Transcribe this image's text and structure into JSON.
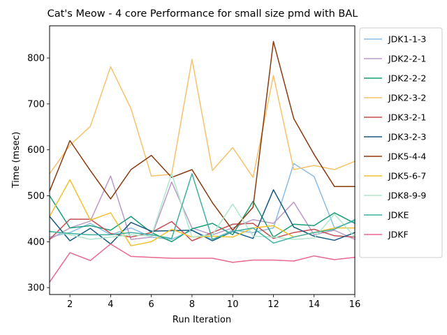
{
  "chart_data": {
    "type": "line",
    "title": "Cat's Meow - 4 core Performance for small size pmd with BAL",
    "xlabel": "Run Iteration",
    "ylabel": "Time (msec)",
    "xlim": [
      1,
      16
    ],
    "ylim": [
      285,
      870
    ],
    "xticks": [
      2,
      4,
      6,
      8,
      10,
      12,
      14,
      16
    ],
    "yticks": [
      300,
      400,
      500,
      600,
      700,
      800
    ],
    "grid": false,
    "legend_position": "right-outside",
    "x": [
      1,
      2,
      3,
      4,
      5,
      6,
      7,
      8,
      9,
      10,
      11,
      12,
      13,
      14,
      15,
      16
    ],
    "series": [
      {
        "name": "JDK1-1-3",
        "color": "#88bde6",
        "values": [
          410,
          420,
          440,
          415,
          430,
          410,
          405,
          425,
          405,
          425,
          420,
          430,
          570,
          542,
          430,
          445
        ]
      },
      {
        "name": "JDK2-2-1",
        "color": "#bc99c7",
        "values": [
          405,
          430,
          445,
          543,
          405,
          410,
          530,
          430,
          415,
          430,
          448,
          440,
          486,
          415,
          425,
          405
        ]
      },
      {
        "name": "JDK2-2-2",
        "color": "#1b9e77",
        "values": [
          500,
          430,
          435,
          425,
          455,
          420,
          400,
          428,
          440,
          415,
          488,
          410,
          438,
          435,
          463,
          440
        ]
      },
      {
        "name": "JDK2-3-2",
        "color": "#f6c26b",
        "values": [
          548,
          610,
          651,
          781,
          690,
          543,
          547,
          797,
          555,
          605,
          540,
          762,
          557,
          566,
          557,
          575
        ]
      },
      {
        "name": "JDK3-2-1",
        "color": "#c44e52",
        "values": [
          405,
          449,
          449,
          418,
          410,
          420,
          444,
          402,
          420,
          438,
          440,
          407,
          420,
          427,
          413,
          410
        ]
      },
      {
        "name": "JDK3-2-3",
        "color": "#1a5a80",
        "values": [
          455,
          402,
          429,
          395,
          442,
          423,
          424,
          425,
          402,
          422,
          407,
          513,
          432,
          412,
          403,
          420
        ]
      },
      {
        "name": "JDK5-4-4",
        "color": "#8b3a0e",
        "values": [
          510,
          620,
          555,
          493,
          557,
          588,
          540,
          557,
          485,
          425,
          475,
          836,
          668,
          590,
          520,
          520
        ]
      },
      {
        "name": "JDK5-6-7",
        "color": "#f2c12e",
        "values": [
          455,
          535,
          447,
          463,
          391,
          400,
          427,
          410,
          412,
          410,
          430,
          435,
          410,
          420,
          430,
          430
        ]
      },
      {
        "name": "JDK8-9-9",
        "color": "#ade8cc",
        "values": [
          423,
          415,
          405,
          410,
          415,
          412,
          548,
          410,
          415,
          482,
          412,
          410,
          405,
          408,
          460,
          410
        ]
      },
      {
        "name": "JDKE",
        "color": "#3fb0a0",
        "values": [
          422,
          418,
          415,
          415,
          420,
          415,
          407,
          548,
          405,
          422,
          430,
          397,
          410,
          420,
          427,
          448
        ]
      },
      {
        "name": "JDKF",
        "color": "#e8688e",
        "values": [
          312,
          376,
          359,
          395,
          368,
          366,
          364,
          364,
          364,
          355,
          360,
          360,
          358,
          369,
          361,
          366
        ]
      }
    ]
  }
}
